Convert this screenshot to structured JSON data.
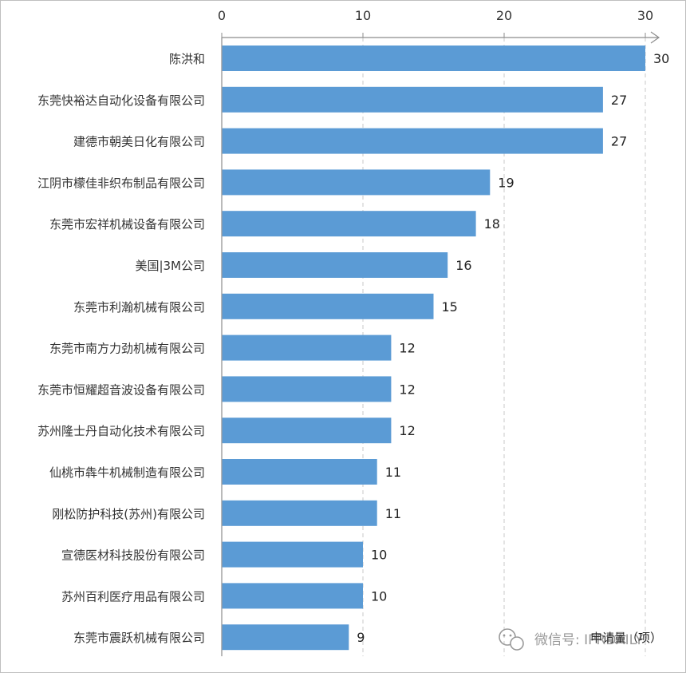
{
  "chart_data": {
    "type": "bar",
    "orientation": "horizontal",
    "categories": [
      "陈洪和",
      "东莞快裕达自动化设备有限公司",
      "建德市朝美日化有限公司",
      "江阴市檬佳非织布制品有限公司",
      "东莞市宏祥机械设备有限公司",
      "美国|3M公司",
      "东莞市利瀚机械有限公司",
      "东莞市南方力劲机械有限公司",
      "东莞市恒耀超音波设备有限公司",
      "苏州隆士丹自动化技术有限公司",
      "仙桃市犇牛机械制造有限公司",
      "刚松防护科技(苏州)有限公司",
      "宣德医材科技股份有限公司",
      "苏州百利医疗用品有限公司",
      "东莞市震跃机械有限公司"
    ],
    "values": [
      30,
      27,
      27,
      19,
      18,
      16,
      15,
      12,
      12,
      12,
      11,
      11,
      10,
      10,
      9
    ],
    "xlim": [
      0,
      30
    ],
    "x_ticks": [
      "0",
      "10",
      "20",
      "30"
    ],
    "axis_position": "top",
    "grid": "vertical dashed",
    "bar_color": "#5b9bd5",
    "xlabel": "申请量（项）"
  },
  "watermark": {
    "text": "微信号: IPRDAILY",
    "icon": "wechat-icon"
  }
}
